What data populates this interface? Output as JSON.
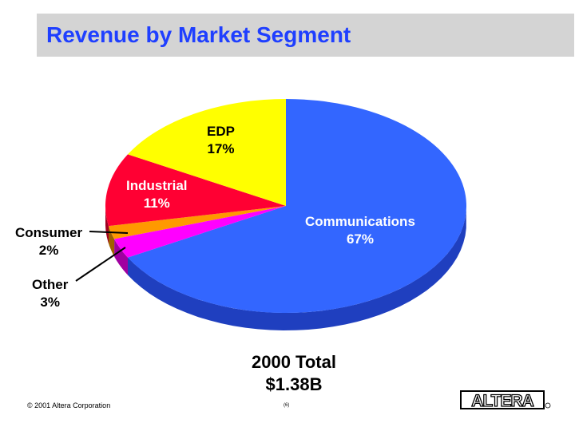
{
  "header": {
    "title": "Revenue by Market Segment"
  },
  "chart_data": {
    "type": "pie",
    "title": "Revenue by Market Segment",
    "slices": [
      {
        "label": "Communications",
        "value": 67,
        "display": "67%",
        "color": "#3366ff",
        "side_color": "#1f3fbf"
      },
      {
        "label": "Other",
        "value": 3,
        "display": "3%",
        "color": "#ff00ff",
        "side_color": "#a000a0"
      },
      {
        "label": "Consumer",
        "value": 2,
        "display": "2%",
        "color": "#ff9900",
        "side_color": "#a06000"
      },
      {
        "label": "Industrial",
        "value": 11,
        "display": "11%",
        "color": "#ff0033",
        "side_color": "#a00020"
      },
      {
        "label": "EDP",
        "value": 17,
        "display": "17%",
        "color": "#ffff00",
        "side_color": "#a0a000"
      }
    ],
    "total_label": "2000 Total",
    "total_value": "$1.38B",
    "view": "3d-tilted"
  },
  "footer": {
    "copyright": "© 2001 Altera Corporation",
    "page": "(6)",
    "logo_text": "ALTERA"
  }
}
